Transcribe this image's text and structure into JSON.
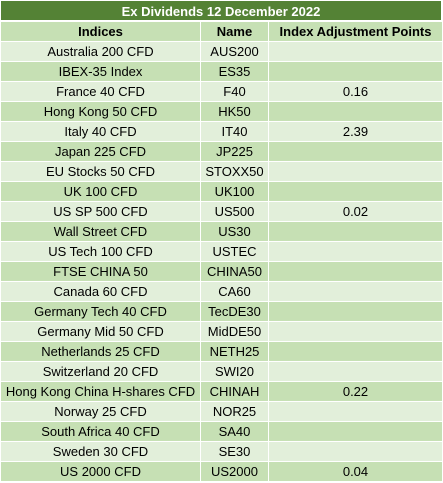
{
  "title": "Ex Dividends 12 December 2022",
  "columns": {
    "indices": "Indices",
    "name": "Name",
    "points": "Index Adjustment Points"
  },
  "rows": [
    {
      "index": "Australia 200 CFD",
      "name": "AUS200",
      "points": ""
    },
    {
      "index": "IBEX-35 Index",
      "name": "ES35",
      "points": ""
    },
    {
      "index": "France 40 CFD",
      "name": "F40",
      "points": "0.16"
    },
    {
      "index": "Hong Kong 50 CFD",
      "name": "HK50",
      "points": ""
    },
    {
      "index": "Italy 40 CFD",
      "name": "IT40",
      "points": "2.39"
    },
    {
      "index": "Japan 225 CFD",
      "name": "JP225",
      "points": ""
    },
    {
      "index": "EU Stocks 50 CFD",
      "name": "STOXX50",
      "points": ""
    },
    {
      "index": "UK 100 CFD",
      "name": "UK100",
      "points": ""
    },
    {
      "index": "US SP 500 CFD",
      "name": "US500",
      "points": "0.02"
    },
    {
      "index": "Wall Street CFD",
      "name": "US30",
      "points": ""
    },
    {
      "index": "US Tech 100 CFD",
      "name": "USTEC",
      "points": ""
    },
    {
      "index": "FTSE CHINA 50",
      "name": "CHINA50",
      "points": ""
    },
    {
      "index": "Canada 60 CFD",
      "name": "CA60",
      "points": ""
    },
    {
      "index": "Germany Tech 40 CFD",
      "name": "TecDE30",
      "points": ""
    },
    {
      "index": "Germany Mid 50 CFD",
      "name": "MidDE50",
      "points": ""
    },
    {
      "index": "Netherlands 25 CFD",
      "name": "NETH25",
      "points": ""
    },
    {
      "index": "Switzerland 20 CFD",
      "name": "SWI20",
      "points": ""
    },
    {
      "index": "Hong Kong China H-shares CFD",
      "name": "CHINAH",
      "points": "0.22"
    },
    {
      "index": "Norway 25 CFD",
      "name": "NOR25",
      "points": ""
    },
    {
      "index": "South Africa 40 CFD",
      "name": "SA40",
      "points": ""
    },
    {
      "index": "Sweden 30 CFD",
      "name": "SE30",
      "points": ""
    },
    {
      "index": "US 2000 CFD",
      "name": "US2000",
      "points": "0.04"
    }
  ]
}
